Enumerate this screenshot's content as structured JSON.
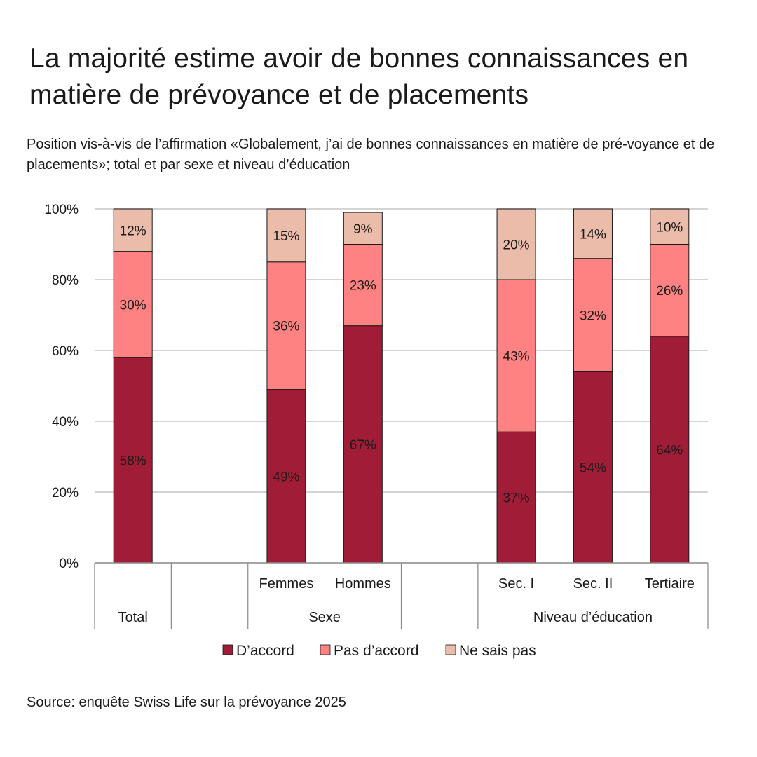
{
  "title": "La majorité estime avoir de bonnes connaissances en matière de prévoyance et de placements",
  "subtitle": "Position vis-à-vis de l’affirmation «Globalement, j’ai de bonnes connaissances en matière de pré-voyance et de placements»; total et par sexe et niveau d’éducation",
  "source": "Source: enquête Swiss Life sur la prévoyance 2025",
  "chart_data": {
    "type": "bar",
    "stacked": true,
    "ylim": [
      0,
      100
    ],
    "yticks": [
      "0%",
      "20%",
      "40%",
      "60%",
      "80%",
      "100%"
    ],
    "ytick_values": [
      0,
      20,
      40,
      60,
      80,
      100
    ],
    "grid": true,
    "legend_position": "bottom",
    "categories": [
      "Total",
      "",
      "Femmes",
      "Hommes",
      "",
      "Sec. I",
      "Sec. II",
      "Tertiaire"
    ],
    "groups": [
      {
        "label": "Total",
        "span": 1
      },
      {
        "label": "",
        "span": 1
      },
      {
        "label": "Sexe",
        "span": 2
      },
      {
        "label": "",
        "span": 1
      },
      {
        "label": "Niveau d’éducation",
        "span": 3
      }
    ],
    "series": [
      {
        "name": "D’accord",
        "color": "#a11c37",
        "values": [
          58,
          null,
          49,
          67,
          null,
          37,
          54,
          64
        ],
        "labels": [
          "58%",
          "",
          "49%",
          "67%",
          "",
          "37%",
          "54%",
          "64%"
        ]
      },
      {
        "name": "Pas d’accord",
        "color": "#fd8281",
        "values": [
          30,
          null,
          36,
          23,
          null,
          43,
          32,
          26
        ],
        "labels": [
          "30%",
          "",
          "36%",
          "23%",
          "",
          "43%",
          "32%",
          "26%"
        ]
      },
      {
        "name": "Ne sais pas",
        "color": "#ecbcaa",
        "values": [
          12,
          null,
          15,
          9,
          null,
          20,
          14,
          10
        ],
        "labels": [
          "12%",
          "",
          "15%",
          "9%",
          "",
          "20%",
          "14%",
          "10%"
        ]
      }
    ]
  }
}
